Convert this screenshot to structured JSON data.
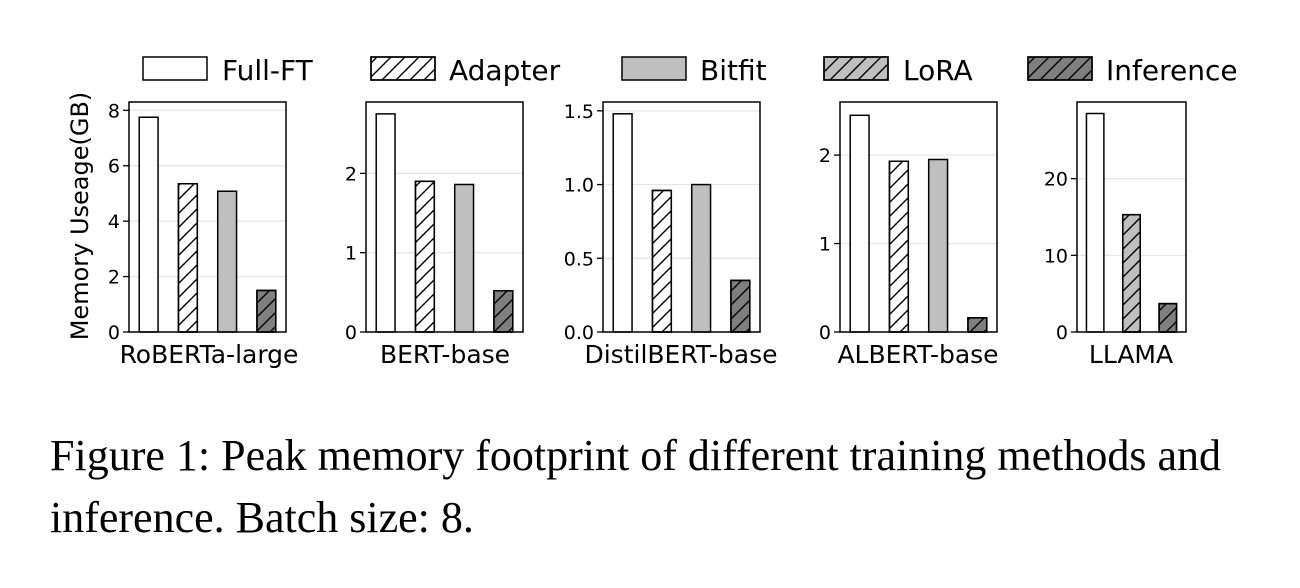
{
  "chart_data": {
    "type": "bar",
    "ylabel": "Memory Useage(GB)",
    "grid": true,
    "legend_position": "top",
    "series": [
      {
        "name": "Full-FT",
        "fill": "#ffffff",
        "hatch": false
      },
      {
        "name": "Adapter",
        "fill": "#ffffff",
        "hatch": true
      },
      {
        "name": "Bitfit",
        "fill": "#bfbfbf",
        "hatch": false
      },
      {
        "name": "LoRA",
        "fill": "#bfbfbf",
        "hatch": true
      },
      {
        "name": "Inference",
        "fill": "#7f7f7f",
        "hatch": true
      }
    ],
    "panels": [
      {
        "xlabel": "RoBERTa-large",
        "ylim": [
          0,
          8.3
        ],
        "yticks": [
          0,
          2,
          4,
          6,
          8
        ],
        "ytick_labels": [
          "0",
          "2",
          "4",
          "6",
          "8"
        ],
        "bars": [
          {
            "series": "Full-FT",
            "value": 7.75
          },
          {
            "series": "Adapter",
            "value": 5.35
          },
          {
            "series": "Bitfit",
            "value": 5.08
          },
          {
            "series": "Inference",
            "value": 1.5
          }
        ]
      },
      {
        "xlabel": "BERT-base",
        "ylim": [
          0,
          2.9
        ],
        "yticks": [
          0,
          1,
          2
        ],
        "ytick_labels": [
          "0",
          "1",
          "2"
        ],
        "bars": [
          {
            "series": "Full-FT",
            "value": 2.75
          },
          {
            "series": "Adapter",
            "value": 1.9
          },
          {
            "series": "Bitfit",
            "value": 1.86
          },
          {
            "series": "Inference",
            "value": 0.52
          }
        ]
      },
      {
        "xlabel": "DistilBERT-base",
        "ylim": [
          0,
          1.56
        ],
        "yticks": [
          0,
          0.5,
          1.0,
          1.5
        ],
        "ytick_labels": [
          "0.0",
          "0.5",
          "1.0",
          "1.5"
        ],
        "bars": [
          {
            "series": "Full-FT",
            "value": 1.48
          },
          {
            "series": "Adapter",
            "value": 0.96
          },
          {
            "series": "Bitfit",
            "value": 1.0
          },
          {
            "series": "Inference",
            "value": 0.35
          }
        ]
      },
      {
        "xlabel": "ALBERT-base",
        "ylim": [
          0,
          2.6
        ],
        "yticks": [
          0,
          1,
          2
        ],
        "ytick_labels": [
          "0",
          "1",
          "2"
        ],
        "bars": [
          {
            "series": "Full-FT",
            "value": 2.45
          },
          {
            "series": "Adapter",
            "value": 1.93
          },
          {
            "series": "Bitfit",
            "value": 1.95
          },
          {
            "series": "Inference",
            "value": 0.16
          }
        ]
      },
      {
        "xlabel": "LLAMA",
        "ylim": [
          0,
          30
        ],
        "yticks": [
          0,
          10,
          20
        ],
        "ytick_labels": [
          "0",
          "10",
          "20"
        ],
        "bars": [
          {
            "series": "Full-FT",
            "value": 28.5
          },
          {
            "series": "LoRA",
            "value": 15.3
          },
          {
            "series": "Inference",
            "value": 3.7
          }
        ]
      }
    ]
  },
  "caption": "Figure 1: Peak memory footprint of different training methods and inference. Batch size: 8."
}
